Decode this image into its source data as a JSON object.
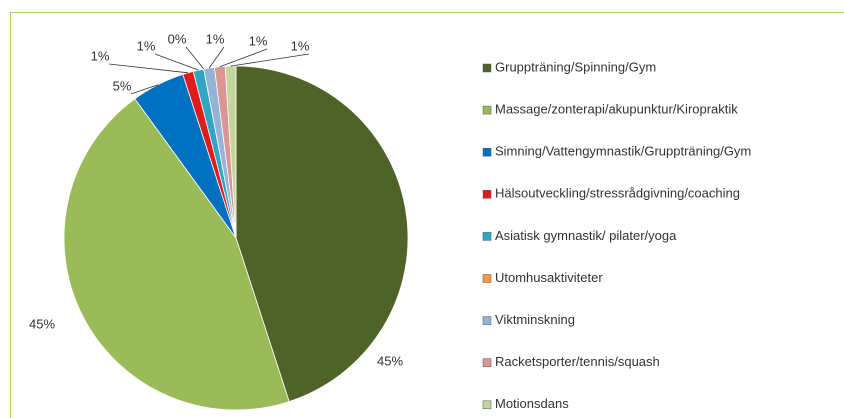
{
  "chart_data": {
    "type": "pie",
    "categories": [
      "Gruppträning/Spinning/Gym",
      "Massage/zonterapi/akupunktur/Kiropraktik",
      "Simning/Vattengymnastik/Gruppträning/Gym",
      "Hälsoutveckling/stressrådgivning/coaching",
      "Asiatisk gymnastik/ pilater/yoga",
      "Utomhusaktiviteter",
      "Viktminskning",
      "Racketsporter/tennis/squash",
      "Motionsdans"
    ],
    "values": [
      45,
      45,
      5,
      1,
      1,
      0,
      1,
      1,
      1
    ],
    "value_labels": [
      "45%",
      "45%",
      "5%",
      "1%",
      "1%",
      "0%",
      "1%",
      "1%",
      "1%"
    ],
    "colors": [
      "#4f6228",
      "#9bbb59",
      "#0070c0",
      "#e01b1b",
      "#31a5c4",
      "#f79646",
      "#95b3d7",
      "#d99694",
      "#c3d69b"
    ],
    "legend": "right"
  }
}
